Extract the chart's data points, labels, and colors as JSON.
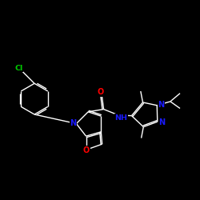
{
  "background_color": "#000000",
  "bond_color": "#ffffff",
  "atom_colors": {
    "N": "#1a1aff",
    "O": "#ff0000",
    "Cl": "#00cc00",
    "C": "#ffffff",
    "H": "#ffffff"
  },
  "lw": 1.0,
  "fs": 6.5
}
